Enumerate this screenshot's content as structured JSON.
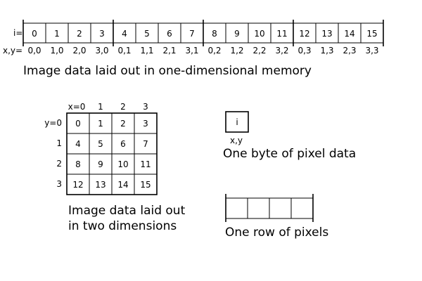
{
  "linear": {
    "index_prefix": "i=",
    "coord_prefix": "x,y=",
    "cells": [
      "0",
      "1",
      "2",
      "3",
      "4",
      "5",
      "6",
      "7",
      "8",
      "9",
      "10",
      "11",
      "12",
      "13",
      "14",
      "15"
    ],
    "coords": [
      "0,0",
      "1,0",
      "2,0",
      "3,0",
      "0,1",
      "1,1",
      "2,1",
      "3,1",
      "0,2",
      "1,2",
      "2,2",
      "3,2",
      "0,3",
      "1,3",
      "2,3",
      "3,3"
    ],
    "caption": "Image data laid out in one-dimensional memory"
  },
  "grid": {
    "col_labels": [
      "x=0",
      "1",
      "2",
      "3"
    ],
    "row_labels": [
      "y=0",
      "1",
      "2",
      "3"
    ],
    "cells": [
      [
        "0",
        "1",
        "2",
        "3"
      ],
      [
        "4",
        "5",
        "6",
        "7"
      ],
      [
        "8",
        "9",
        "10",
        "11"
      ],
      [
        "12",
        "13",
        "14",
        "15"
      ]
    ],
    "caption_line1": "Image data laid out",
    "caption_line2": "in two dimensions"
  },
  "byte": {
    "cell_label": "i",
    "coord_label": "x,y",
    "caption": "One byte of pixel data"
  },
  "row": {
    "cell_count": 4,
    "caption": "One row of pixels"
  }
}
